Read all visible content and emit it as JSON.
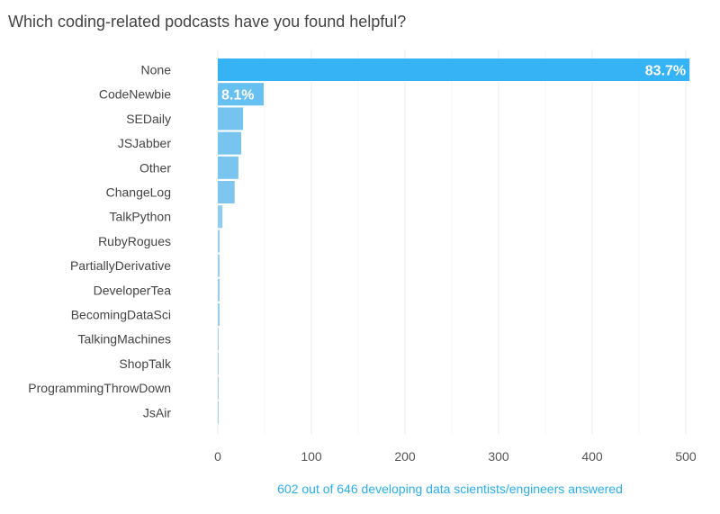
{
  "chart_data": {
    "type": "bar",
    "orientation": "horizontal",
    "title": "Which coding-related podcasts have you found helpful?",
    "xlabel": "602 out of 646 developing data scientists/engineers answered",
    "ylabel": "",
    "xlim": [
      0,
      500
    ],
    "xticks": [
      0,
      100,
      200,
      300,
      400,
      500
    ],
    "grid": true,
    "categories": [
      "None",
      "CodeNewbie",
      "SEDaily",
      "JSJabber",
      "Other",
      "ChangeLog",
      "TalkPython",
      "RubyRogues",
      "PartiallyDerivative",
      "DeveloperTea",
      "BecomingDataSci",
      "TalkingMachines",
      "ShopTalk",
      "ProgrammingThrowDown",
      "JsAir"
    ],
    "values": [
      504,
      49,
      27,
      25,
      22,
      18,
      5,
      2,
      2,
      2,
      2,
      1,
      1,
      1,
      1
    ],
    "data_labels": [
      "83.7%",
      "8.1%",
      "",
      "",
      "",
      "",
      "",
      "",
      "",
      "",
      "",
      "",
      "",
      "",
      ""
    ],
    "colors": {
      "bar_main": "#35b3f5",
      "bar_light": "#b6d5ea",
      "xlabel": "#29aef0",
      "grid": "#ececec"
    }
  }
}
